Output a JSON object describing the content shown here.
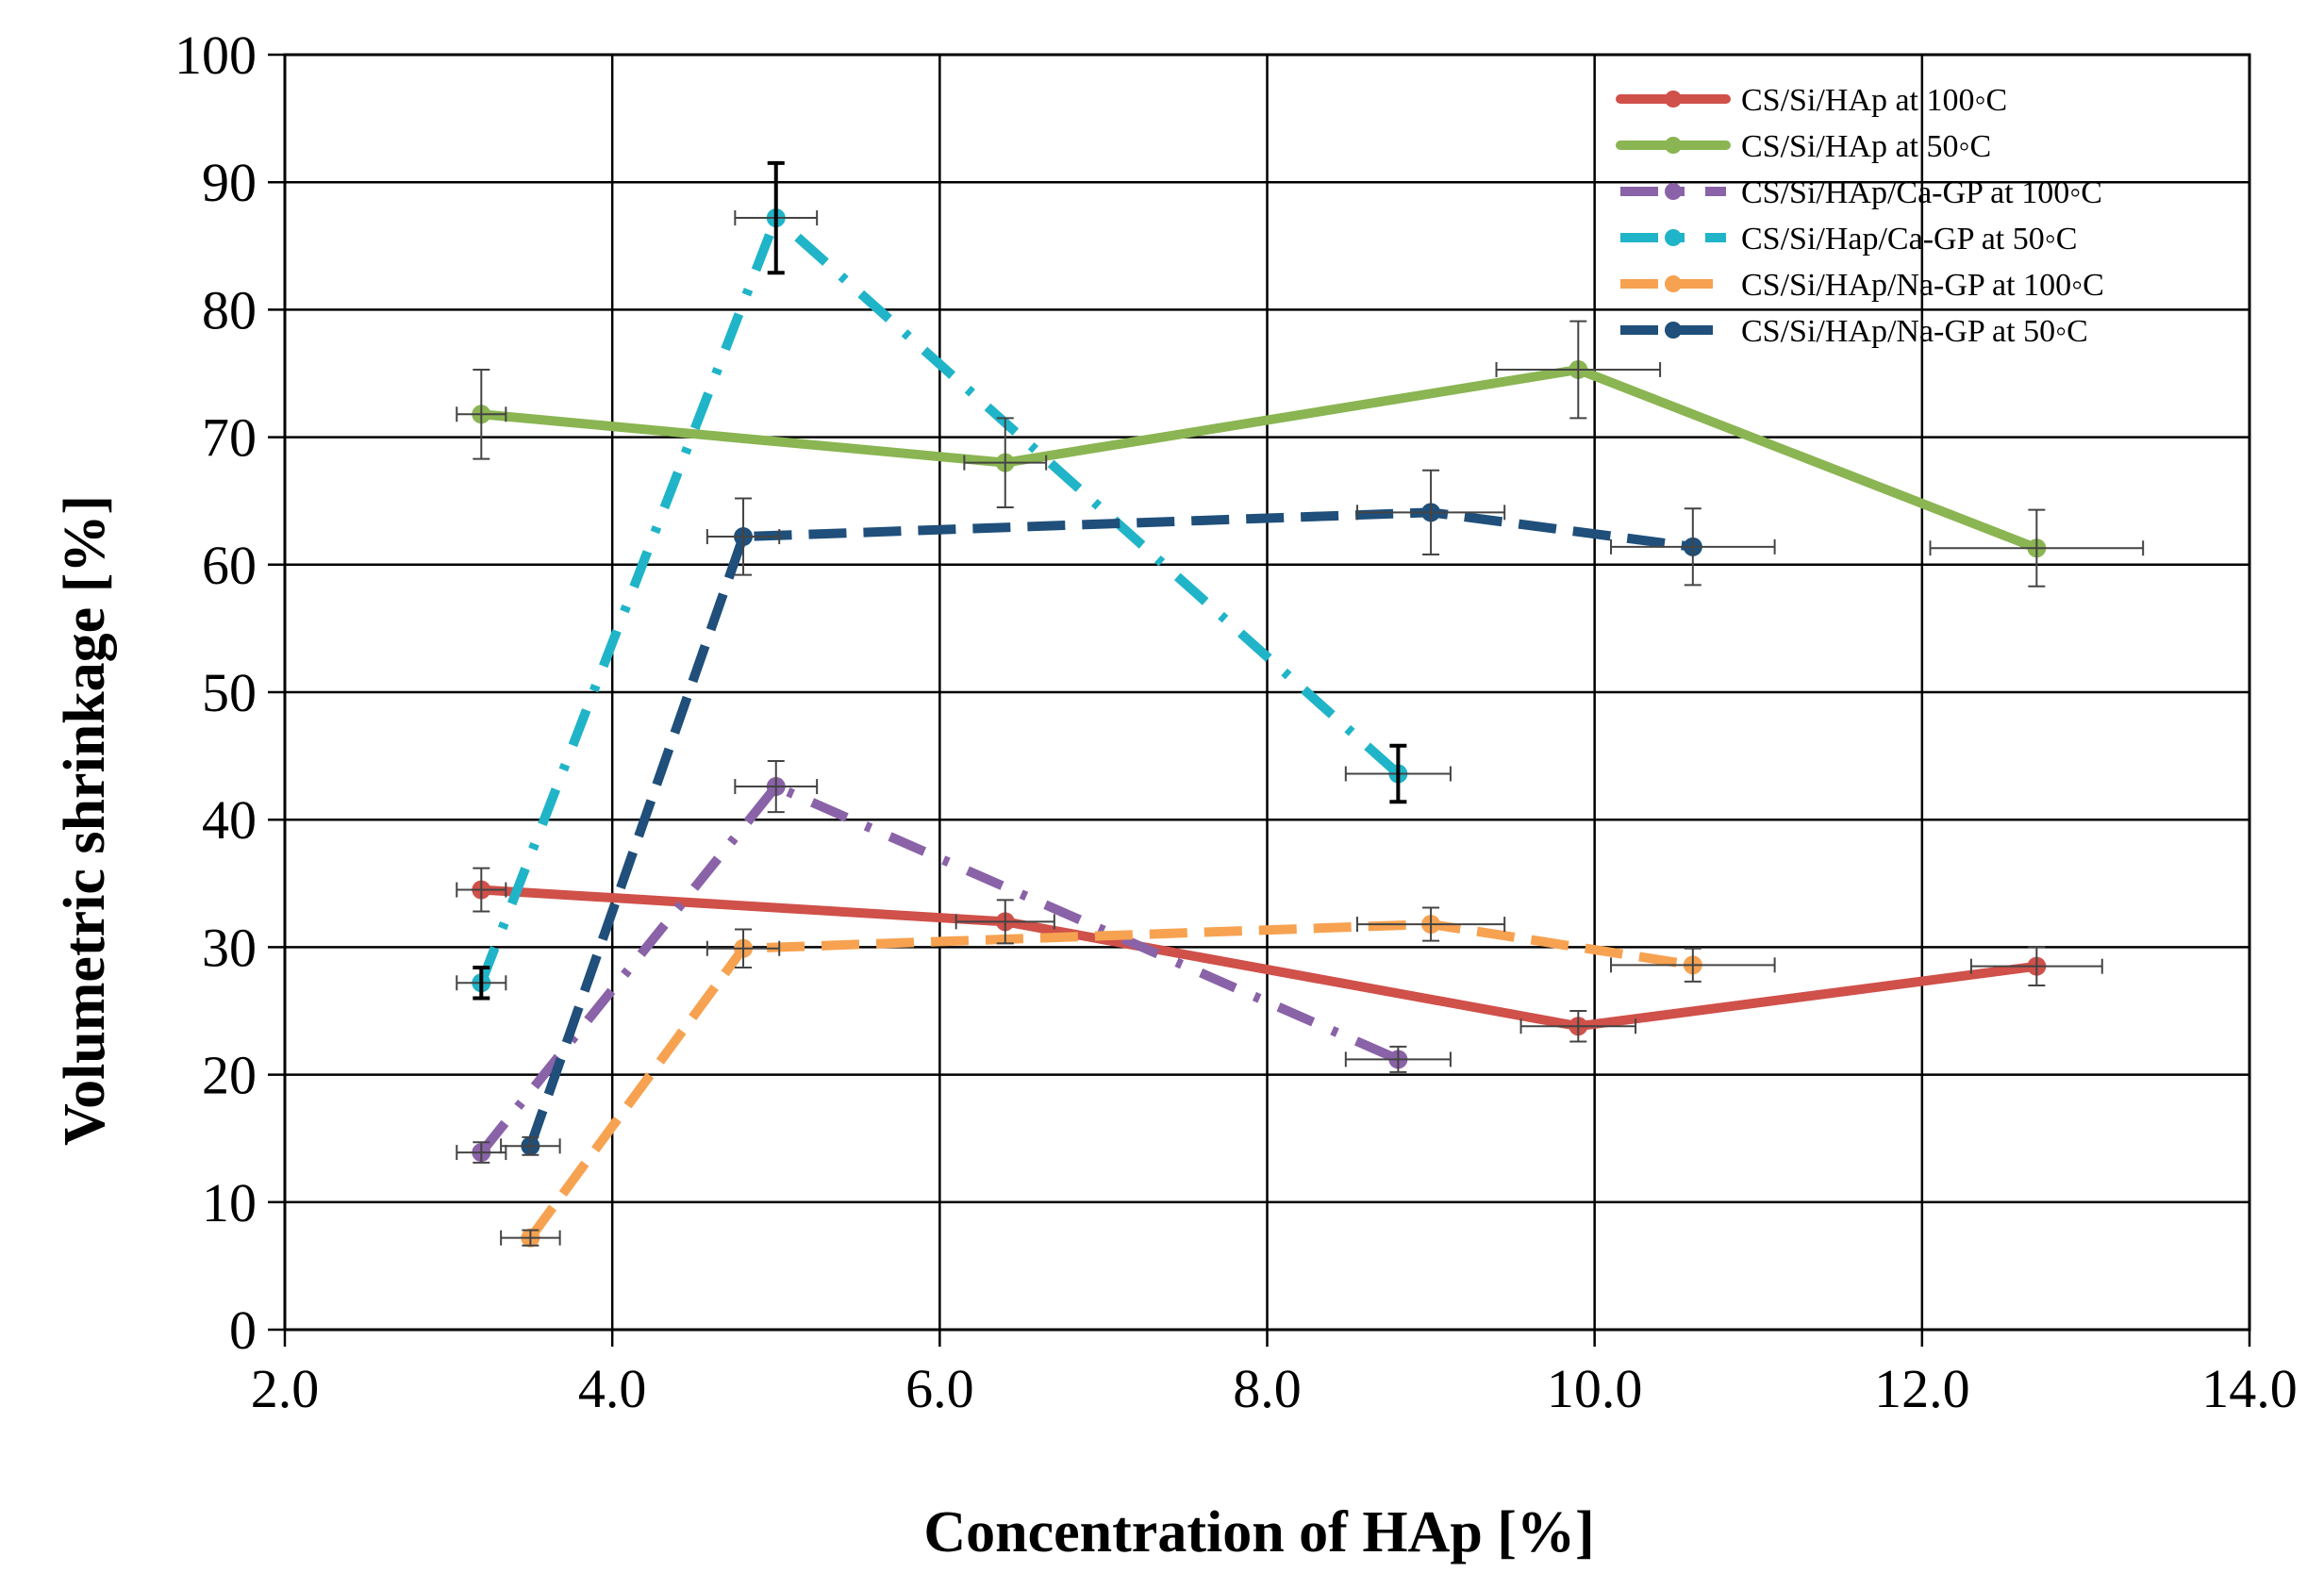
{
  "chart_data": {
    "type": "line",
    "title": "",
    "xlabel": "Concentration of HAp [%]",
    "ylabel": "Volumetric shrinkage [%]",
    "xlim": [
      2.0,
      14.0
    ],
    "ylim": [
      0,
      100
    ],
    "x_ticks": [
      "2.0",
      "4.0",
      "6.0",
      "8.0",
      "10.0",
      "12.0",
      "14.0"
    ],
    "y_ticks": [
      "0",
      "10",
      "20",
      "30",
      "40",
      "50",
      "60",
      "70",
      "80",
      "90",
      "100"
    ],
    "x_tick_values": [
      2,
      4,
      6,
      8,
      10,
      12,
      14
    ],
    "y_tick_values": [
      0,
      10,
      20,
      30,
      40,
      50,
      60,
      70,
      80,
      90,
      100
    ],
    "grid": true,
    "legend_position": "top-right",
    "series": [
      {
        "name": "CS/Si/HAp at 100◦C",
        "color": "#d0504a",
        "dash": "solid",
        "points": [
          {
            "x": 3.2,
            "y": 34.5,
            "xerr": 0.15,
            "yerr": 1.7
          },
          {
            "x": 6.4,
            "y": 32.0,
            "xerr": 0.3,
            "yerr": 1.7
          },
          {
            "x": 9.9,
            "y": 23.8,
            "xerr": 0.35,
            "yerr": 1.2
          },
          {
            "x": 12.7,
            "y": 28.5,
            "xerr": 0.4,
            "yerr": 1.5
          }
        ]
      },
      {
        "name": "CS/Si/HAp at 50◦C",
        "color": "#8ab552",
        "dash": "solid",
        "points": [
          {
            "x": 3.2,
            "y": 71.8,
            "xerr": 0.15,
            "yerr": 3.5
          },
          {
            "x": 6.4,
            "y": 68.0,
            "xerr": 0.25,
            "yerr": 3.5
          },
          {
            "x": 9.9,
            "y": 75.3,
            "xerr": 0.5,
            "yerr": 3.8
          },
          {
            "x": 12.7,
            "y": 61.3,
            "xerr": 0.65,
            "yerr": 3.0
          }
        ]
      },
      {
        "name": "CS/Si/HAp/Ca-GP at 100◦C",
        "color": "#8a62a8",
        "dash": "dashdot",
        "points": [
          {
            "x": 3.2,
            "y": 13.9,
            "xerr": 0.15,
            "yerr": 0.8
          },
          {
            "x": 5.0,
            "y": 42.6,
            "xerr": 0.25,
            "yerr": 2.0
          },
          {
            "x": 8.8,
            "y": 21.2,
            "xerr": 0.32,
            "yerr": 1.0
          }
        ]
      },
      {
        "name": "CS/Si/Hap/Ca-GP at 50◦C",
        "color": "#20b4c8",
        "dash": "dashdot",
        "points": [
          {
            "x": 3.2,
            "y": 27.2,
            "xerr": 0.15,
            "yerr": 1.2,
            "bold_err": true
          },
          {
            "x": 5.0,
            "y": 87.2,
            "xerr": 0.25,
            "yerr": 4.3,
            "bold_err": true
          },
          {
            "x": 8.8,
            "y": 43.6,
            "xerr": 0.32,
            "yerr": 2.2,
            "bold_err": true
          }
        ]
      },
      {
        "name": "CS/Si/HAp/Na-GP at 100◦C",
        "color": "#f7a251",
        "dash": "dash",
        "points": [
          {
            "x": 3.5,
            "y": 7.2,
            "xerr": 0.18,
            "yerr": 0.6
          },
          {
            "x": 4.8,
            "y": 29.9,
            "xerr": 0.22,
            "yerr": 1.5
          },
          {
            "x": 9.0,
            "y": 31.8,
            "xerr": 0.45,
            "yerr": 1.3
          },
          {
            "x": 10.6,
            "y": 28.6,
            "xerr": 0.5,
            "yerr": 1.3
          }
        ]
      },
      {
        "name": "CS/Si/HAp/Na-GP at 50◦C",
        "color": "#1f4f7a",
        "dash": "dash",
        "points": [
          {
            "x": 3.5,
            "y": 14.4,
            "xerr": 0.18,
            "yerr": 0.7
          },
          {
            "x": 4.8,
            "y": 62.2,
            "xerr": 0.22,
            "yerr": 3.0
          },
          {
            "x": 9.0,
            "y": 64.1,
            "xerr": 0.45,
            "yerr": 3.3
          },
          {
            "x": 10.6,
            "y": 61.4,
            "xerr": 0.5,
            "yerr": 3.0
          }
        ]
      }
    ]
  }
}
